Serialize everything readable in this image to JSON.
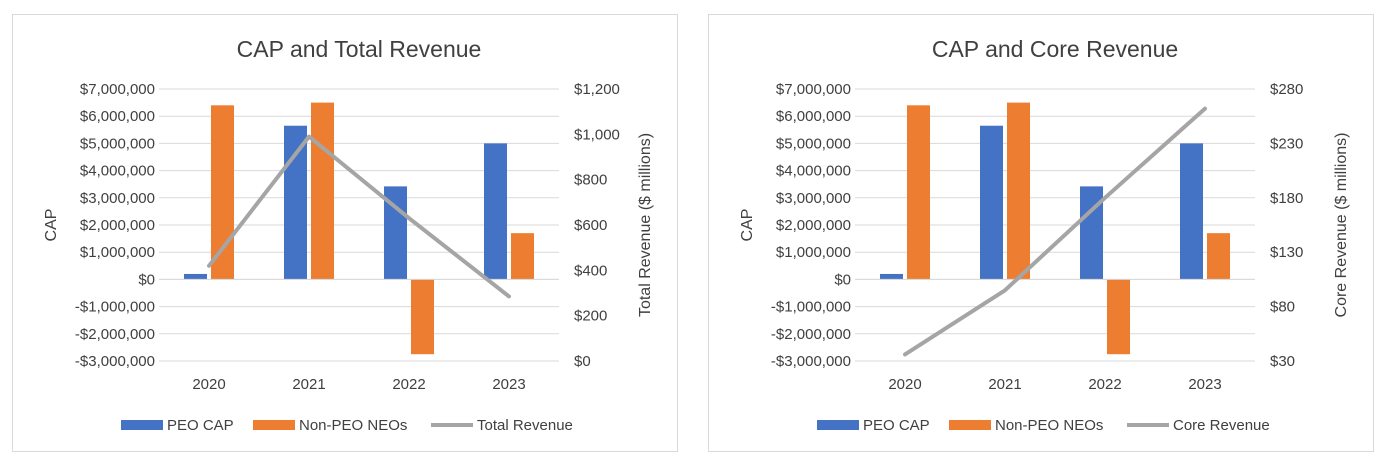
{
  "colors": {
    "peo": "#4472C4",
    "nonpeo": "#ED7D31",
    "line": "#A5A5A5"
  },
  "chart_data": [
    {
      "type": "bar",
      "title": "CAP and Total Revenue",
      "categories": [
        "2020",
        "2021",
        "2022",
        "2023"
      ],
      "ylabel": "CAP",
      "ylim": [
        -3000000,
        7000000
      ],
      "yticks": [
        -3000000,
        -2000000,
        -1000000,
        0,
        1000000,
        2000000,
        3000000,
        4000000,
        5000000,
        6000000,
        7000000
      ],
      "ytick_labels": [
        "-$3,000,000",
        "-$2,000,000",
        "-$1,000,000",
        "$0",
        "$1,000,000",
        "$2,000,000",
        "$3,000,000",
        "$4,000,000",
        "$5,000,000",
        "$6,000,000",
        "$7,000,000"
      ],
      "y2label": "Total Revenue ($ millions)",
      "y2lim": [
        0,
        1200
      ],
      "y2ticks": [
        0,
        200,
        400,
        600,
        800,
        1000,
        1200
      ],
      "y2tick_labels": [
        "$0",
        "$200",
        "$400",
        "$600",
        "$800",
        "$1,000",
        "$1,200"
      ],
      "series": [
        {
          "name": "PEO CAP",
          "type": "bar",
          "axis": "left",
          "values": [
            200000,
            5650000,
            3420000,
            5000000
          ]
        },
        {
          "name": "Non-PEO NEOs",
          "type": "bar",
          "axis": "left",
          "values": [
            6400000,
            6500000,
            -2750000,
            1700000
          ]
        },
        {
          "name": "Total Revenue",
          "type": "line",
          "axis": "right",
          "values": [
            420,
            990,
            630,
            285
          ]
        }
      ]
    },
    {
      "type": "bar",
      "title": "CAP and Core Revenue",
      "categories": [
        "2020",
        "2021",
        "2022",
        "2023"
      ],
      "ylabel": "CAP",
      "ylim": [
        -3000000,
        7000000
      ],
      "yticks": [
        -3000000,
        -2000000,
        -1000000,
        0,
        1000000,
        2000000,
        3000000,
        4000000,
        5000000,
        6000000,
        7000000
      ],
      "ytick_labels": [
        "-$3,000,000",
        "-$2,000,000",
        "-$1,000,000",
        "$0",
        "$1,000,000",
        "$2,000,000",
        "$3,000,000",
        "$4,000,000",
        "$5,000,000",
        "$6,000,000",
        "$7,000,000"
      ],
      "y2label": "Core Revenue ($ millions)",
      "y2lim": [
        30,
        280
      ],
      "y2ticks": [
        30,
        80,
        130,
        180,
        230,
        280
      ],
      "y2tick_labels": [
        "$30",
        "$80",
        "$130",
        "$180",
        "$230",
        "$280"
      ],
      "series": [
        {
          "name": "PEO CAP",
          "type": "bar",
          "axis": "left",
          "values": [
            200000,
            5650000,
            3420000,
            5000000
          ]
        },
        {
          "name": "Non-PEO NEOs",
          "type": "bar",
          "axis": "left",
          "values": [
            6400000,
            6500000,
            -2750000,
            1700000
          ]
        },
        {
          "name": "Core Revenue",
          "type": "line",
          "axis": "right",
          "values": [
            36,
            95,
            180,
            262
          ]
        }
      ]
    }
  ]
}
